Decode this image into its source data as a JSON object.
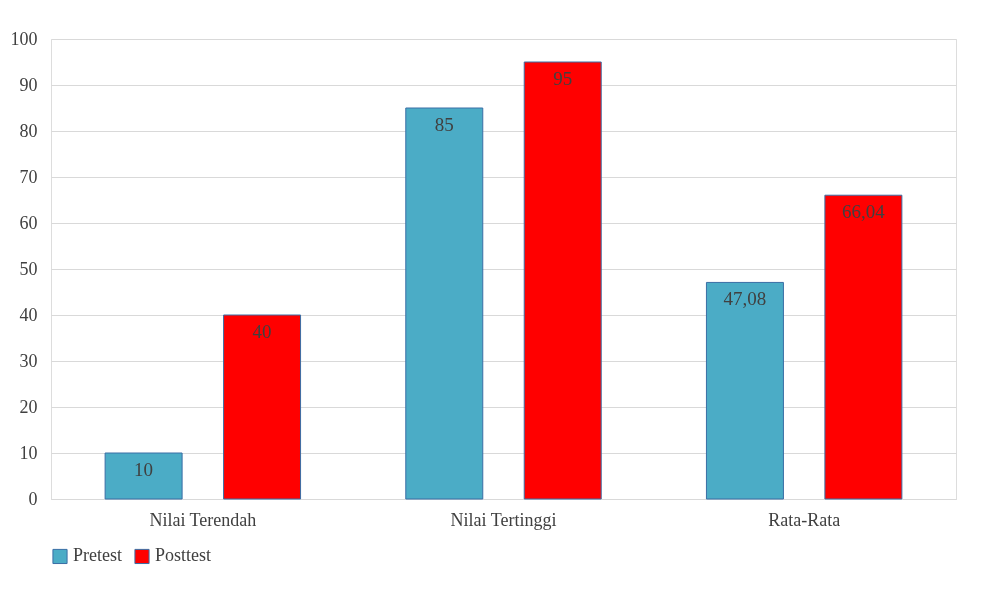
{
  "chart_data": {
    "type": "bar",
    "categories": [
      "Nilai Terendah",
      "Nilai Tertinggi",
      "Rata-Rata"
    ],
    "series": [
      {
        "name": "Pretest",
        "color": "#4bacc6",
        "values": [
          10,
          85,
          47.08
        ],
        "value_labels": [
          "10",
          "85",
          "47,08"
        ]
      },
      {
        "name": "Posttest",
        "color": "#ff0000",
        "values": [
          40,
          95,
          66.04
        ],
        "value_labels": [
          "40",
          "95",
          "66,04"
        ]
      }
    ],
    "ylim": [
      0,
      100
    ],
    "yticks": [
      0,
      10,
      20,
      30,
      40,
      50,
      60,
      70,
      80,
      90,
      100
    ],
    "grid": "y",
    "legend": "bottom"
  }
}
